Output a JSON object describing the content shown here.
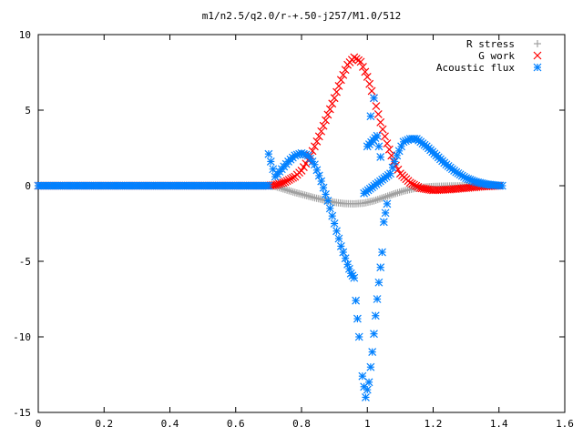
{
  "chart_data": {
    "type": "scatter",
    "title": "m1/n2.5/q2.0/r-+.50-j257/M1.0/512",
    "xlabel": "",
    "ylabel": "",
    "xlim": [
      0,
      1.6
    ],
    "ylim": [
      -15,
      10
    ],
    "x_ticks": [
      "0",
      "0.2",
      "0.4",
      "0.6",
      "0.8",
      "1",
      "1.2",
      "1.4",
      "1.6"
    ],
    "y_ticks": [
      "10",
      "5",
      "0",
      "-5",
      "-10",
      "-15"
    ],
    "grid": false,
    "legend_position": "top-right",
    "series": [
      {
        "name": "R stress",
        "marker": "plus",
        "color": "#a0a0a0",
        "points": [
          [
            0.0,
            0.0
          ],
          [
            0.1,
            0.0
          ],
          [
            0.2,
            0.0
          ],
          [
            0.3,
            0.0
          ],
          [
            0.4,
            0.0
          ],
          [
            0.5,
            0.0
          ],
          [
            0.6,
            0.0
          ],
          [
            0.7,
            0.0
          ],
          [
            0.72,
            -0.05
          ],
          [
            0.75,
            -0.25
          ],
          [
            0.78,
            -0.45
          ],
          [
            0.81,
            -0.62
          ],
          [
            0.84,
            -0.8
          ],
          [
            0.87,
            -0.95
          ],
          [
            0.9,
            -1.1
          ],
          [
            0.93,
            -1.18
          ],
          [
            0.96,
            -1.2
          ],
          [
            0.99,
            -1.15
          ],
          [
            1.02,
            -1.0
          ],
          [
            1.05,
            -0.78
          ],
          [
            1.08,
            -0.55
          ],
          [
            1.11,
            -0.35
          ],
          [
            1.14,
            -0.2
          ],
          [
            1.17,
            -0.1
          ],
          [
            1.2,
            -0.05
          ],
          [
            1.25,
            -0.02
          ],
          [
            1.3,
            0.0
          ],
          [
            1.35,
            0.0
          ],
          [
            1.4,
            0.0
          ]
        ]
      },
      {
        "name": "G work",
        "marker": "cross",
        "color": "#ff0000",
        "points": [
          [
            0.0,
            0.0
          ],
          [
            0.1,
            0.0
          ],
          [
            0.2,
            0.0
          ],
          [
            0.3,
            0.0
          ],
          [
            0.4,
            0.0
          ],
          [
            0.5,
            0.0
          ],
          [
            0.6,
            0.0
          ],
          [
            0.7,
            0.0
          ],
          [
            0.72,
            0.05
          ],
          [
            0.75,
            0.25
          ],
          [
            0.78,
            0.6
          ],
          [
            0.8,
            1.0
          ],
          [
            0.82,
            1.7
          ],
          [
            0.84,
            2.6
          ],
          [
            0.86,
            3.6
          ],
          [
            0.88,
            4.7
          ],
          [
            0.9,
            5.8
          ],
          [
            0.92,
            7.0
          ],
          [
            0.94,
            8.0
          ],
          [
            0.96,
            8.5
          ],
          [
            0.98,
            8.2
          ],
          [
            1.0,
            7.2
          ],
          [
            1.02,
            5.8
          ],
          [
            1.04,
            4.2
          ],
          [
            1.06,
            2.8
          ],
          [
            1.08,
            1.6
          ],
          [
            1.1,
            0.8
          ],
          [
            1.13,
            0.2
          ],
          [
            1.16,
            -0.15
          ],
          [
            1.2,
            -0.3
          ],
          [
            1.25,
            -0.25
          ],
          [
            1.3,
            -0.15
          ],
          [
            1.35,
            -0.05
          ],
          [
            1.4,
            0.0
          ]
        ]
      },
      {
        "name": "Acoustic flux",
        "marker": "star",
        "color": "#0080ff",
        "points": [
          [
            0.0,
            0.0
          ],
          [
            0.1,
            0.0
          ],
          [
            0.2,
            0.0
          ],
          [
            0.3,
            0.0
          ],
          [
            0.4,
            0.0
          ],
          [
            0.5,
            0.0
          ],
          [
            0.6,
            0.0
          ],
          [
            0.7,
            0.0
          ],
          [
            0.7,
            2.1
          ],
          [
            0.72,
            0.6
          ],
          [
            0.74,
            1.1
          ],
          [
            0.76,
            1.6
          ],
          [
            0.78,
            2.0
          ],
          [
            0.8,
            2.15
          ],
          [
            0.82,
            2.0
          ],
          [
            0.84,
            1.4
          ],
          [
            0.86,
            0.3
          ],
          [
            0.88,
            -1.0
          ],
          [
            0.9,
            -2.5
          ],
          [
            0.92,
            -4.0
          ],
          [
            0.94,
            -5.2
          ],
          [
            0.95,
            -5.8
          ],
          [
            0.96,
            -6.1
          ],
          [
            0.965,
            -7.6
          ],
          [
            0.975,
            -10.0
          ],
          [
            0.985,
            -12.6
          ],
          [
            0.995,
            -14.0
          ],
          [
            1.005,
            -13.0
          ],
          [
            1.015,
            -11.0
          ],
          [
            1.025,
            -8.6
          ],
          [
            1.035,
            -6.4
          ],
          [
            1.045,
            -4.4
          ],
          [
            1.05,
            -2.4
          ],
          [
            1.06,
            -1.2
          ],
          [
            1.02,
            5.8
          ],
          [
            1.01,
            4.6
          ],
          [
            1.0,
            2.6
          ],
          [
            1.03,
            3.3
          ],
          [
            1.04,
            1.9
          ],
          [
            0.99,
            -0.5
          ],
          [
            1.07,
            0.8
          ],
          [
            1.09,
            2.0
          ],
          [
            1.11,
            2.9
          ],
          [
            1.13,
            3.1
          ],
          [
            1.15,
            3.1
          ],
          [
            1.18,
            2.6
          ],
          [
            1.21,
            2.0
          ],
          [
            1.24,
            1.4
          ],
          [
            1.27,
            0.9
          ],
          [
            1.3,
            0.5
          ],
          [
            1.33,
            0.25
          ],
          [
            1.36,
            0.1
          ],
          [
            1.39,
            0.03
          ],
          [
            1.41,
            0.0
          ]
        ]
      }
    ]
  }
}
